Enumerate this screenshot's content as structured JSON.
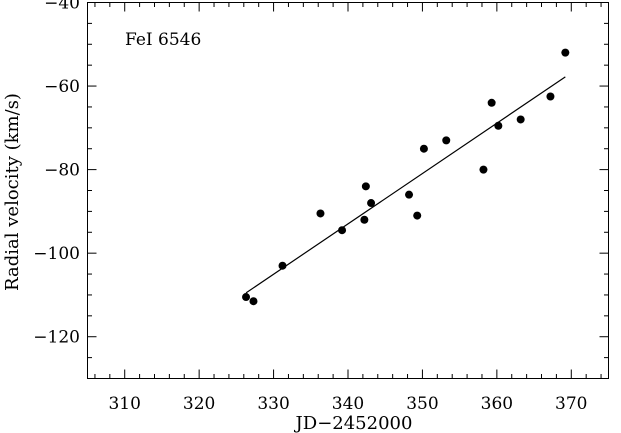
{
  "chart_data": {
    "type": "scatter",
    "annotation": "FeI 6546",
    "xlabel": "JD−2452000",
    "ylabel": "Radial velocity (km/s)",
    "xlim": [
      305,
      375
    ],
    "ylim": [
      -130,
      -40
    ],
    "xticks": [
      310,
      320,
      330,
      340,
      350,
      360,
      370
    ],
    "yticks": [
      -40,
      -60,
      -80,
      -100,
      -120
    ],
    "ytick_labels": [
      "−40",
      "−60",
      "−80",
      "−100",
      "−120"
    ],
    "grid": false,
    "series": [
      {
        "x": [
          326.3,
          327.3,
          331.2,
          336.3,
          339.2,
          342.2,
          342.4,
          343.1,
          348.2,
          349.3,
          350.2,
          353.2,
          358.2,
          359.3,
          360.2,
          363.2,
          367.2,
          369.2
        ],
        "y": [
          -110.5,
          -111.5,
          -103.0,
          -90.5,
          -94.5,
          -92.0,
          -84.0,
          -88.0,
          -86.0,
          -91.0,
          -75.0,
          -73.0,
          -80.0,
          -64.0,
          -69.5,
          -68.0,
          -62.5,
          -52.0
        ]
      }
    ],
    "fit_line": {
      "x": [
        326.3,
        369.2
      ],
      "y": [
        -109.5,
        -57.8
      ]
    }
  }
}
